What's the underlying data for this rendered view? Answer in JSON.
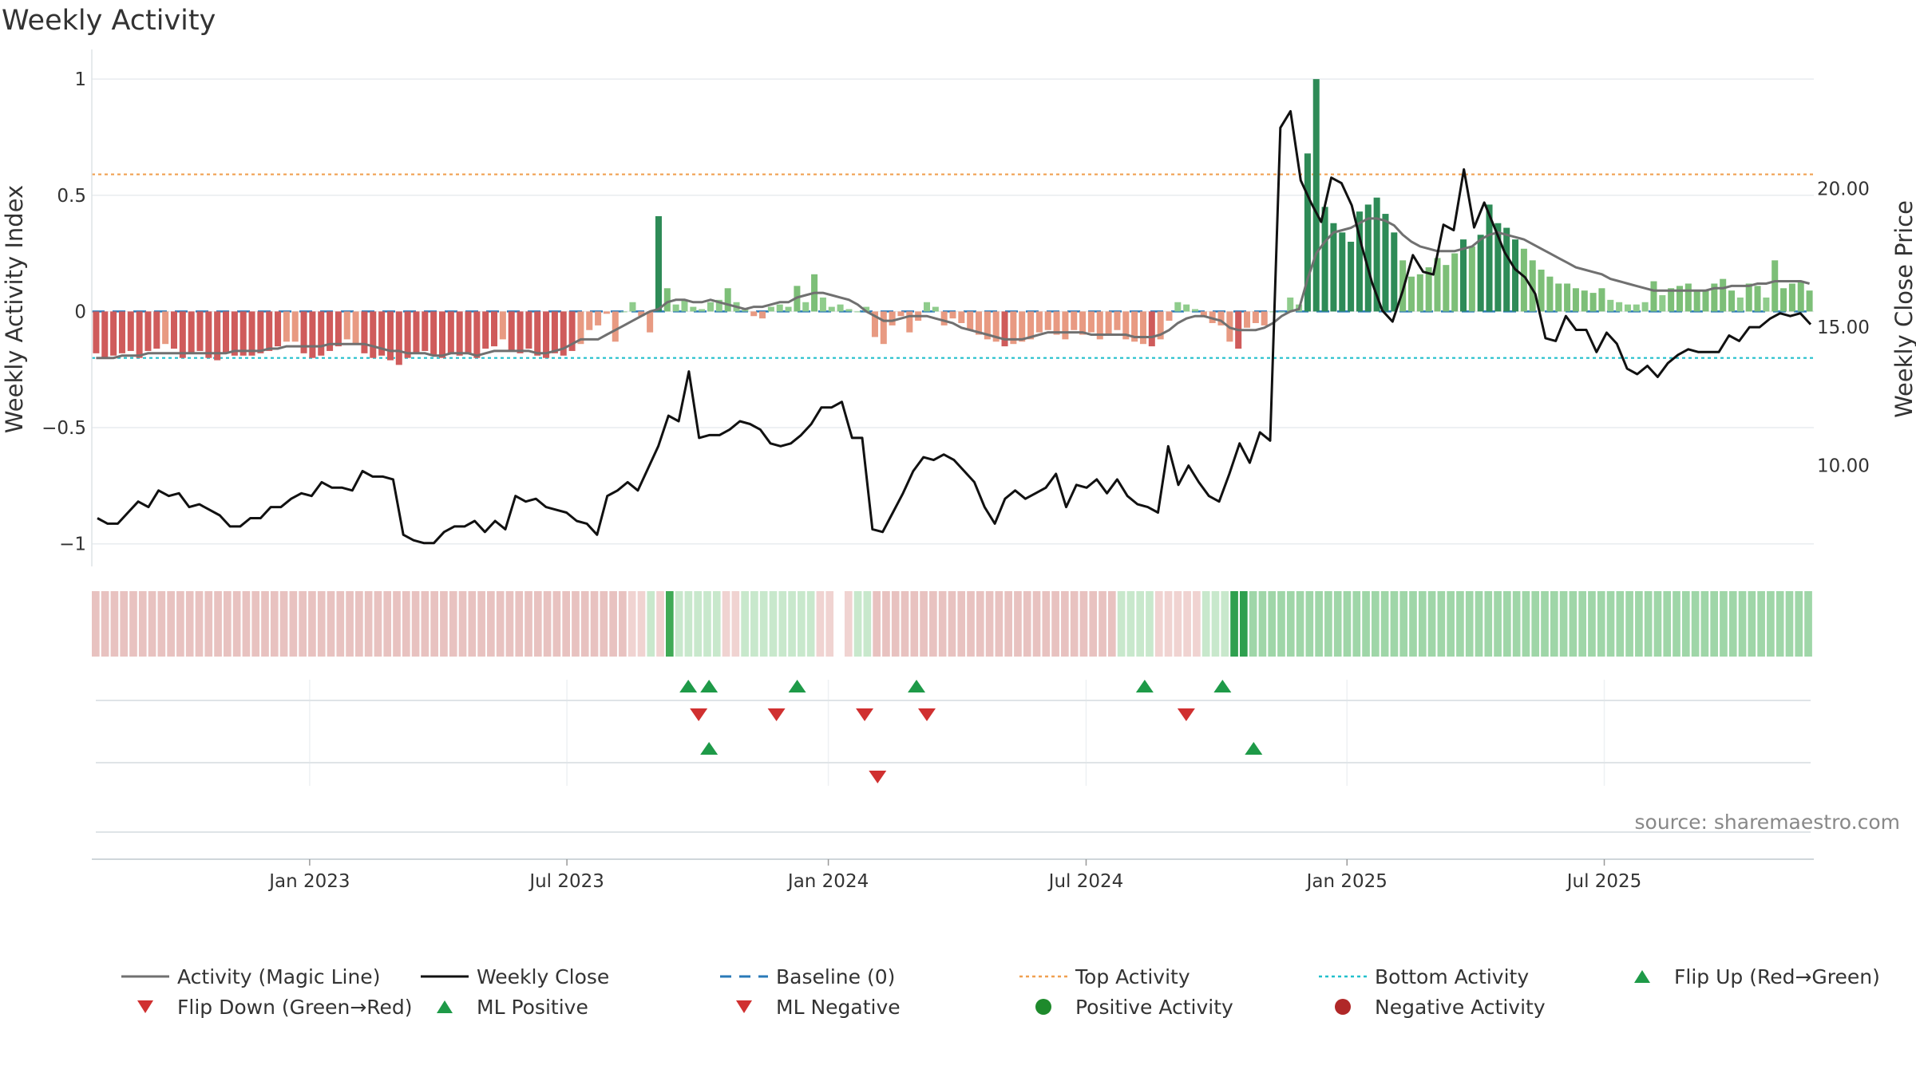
{
  "title": "Weekly Activity",
  "source": "source: sharemaestro.com",
  "colors": {
    "magic_line": "#707070",
    "weekly_close": "#111111",
    "baseline": "#2a7ab8",
    "top_activity": "#f0a050",
    "bottom_activity": "#22c0cc",
    "up_marker": "#1e9a48",
    "down_marker": "#d03030",
    "positive": "#1e8a2c",
    "negative": "#b02828"
  },
  "chart_data": {
    "type": "bar",
    "title": "Weekly Activity",
    "x_range": [
      2022.58,
      2025.9
    ],
    "x_ticks": [
      {
        "label": "Jan 2023",
        "x": 2023.0
      },
      {
        "label": "Jul 2023",
        "x": 2023.496
      },
      {
        "label": "Jan 2024",
        "x": 2024.0
      },
      {
        "label": "Jul 2024",
        "x": 2024.497
      },
      {
        "label": "Jan 2025",
        "x": 2025.0
      },
      {
        "label": "Jul 2025",
        "x": 2025.496
      }
    ],
    "y_left": {
      "label": "Weekly Activity Index",
      "range": [
        -1.08,
        1.1
      ],
      "ticks": [
        {
          "v": 1,
          "label": "1"
        },
        {
          "v": 0.5,
          "label": "0.5"
        },
        {
          "v": 0,
          "label": "0"
        },
        {
          "v": -0.5,
          "label": "−0.5"
        },
        {
          "v": -1,
          "label": "−1"
        }
      ]
    },
    "y_right": {
      "label": "Weekly Close Price",
      "range": [
        6.5,
        24.8
      ],
      "ticks": [
        {
          "v": 20,
          "label": "20.00"
        },
        {
          "v": 15,
          "label": "15.00"
        },
        {
          "v": 10,
          "label": "10.00"
        }
      ]
    },
    "reference_lines": {
      "baseline": 0,
      "top_activity": 0.59,
      "bottom_activity": -0.2
    },
    "activity_bars": [
      -0.18,
      -0.2,
      -0.19,
      -0.18,
      -0.17,
      -0.2,
      -0.17,
      -0.16,
      -0.14,
      -0.16,
      -0.2,
      -0.18,
      -0.17,
      -0.2,
      -0.21,
      -0.18,
      -0.19,
      -0.19,
      -0.19,
      -0.18,
      -0.17,
      -0.15,
      -0.13,
      -0.13,
      -0.18,
      -0.2,
      -0.19,
      -0.17,
      -0.15,
      -0.12,
      -0.14,
      -0.18,
      -0.2,
      -0.19,
      -0.21,
      -0.23,
      -0.2,
      -0.18,
      -0.17,
      -0.19,
      -0.2,
      -0.18,
      -0.19,
      -0.18,
      -0.2,
      -0.16,
      -0.15,
      -0.12,
      -0.17,
      -0.18,
      -0.16,
      -0.19,
      -0.2,
      -0.18,
      -0.19,
      -0.17,
      -0.14,
      -0.08,
      -0.06,
      -0.01,
      -0.13,
      0.0,
      0.04,
      -0.02,
      -0.09,
      0.41,
      0.1,
      0.03,
      0.05,
      0.02,
      0.01,
      0.04,
      0.05,
      0.1,
      0.04,
      0.01,
      -0.02,
      -0.03,
      0.02,
      0.03,
      0.02,
      0.11,
      0.04,
      0.16,
      0.06,
      0.02,
      0.03,
      0.01,
      0.0,
      0.02,
      -0.11,
      -0.14,
      -0.06,
      -0.02,
      -0.09,
      -0.04,
      0.04,
      0.02,
      -0.06,
      -0.03,
      -0.05,
      -0.08,
      -0.1,
      -0.12,
      -0.13,
      -0.15,
      -0.14,
      -0.13,
      -0.12,
      -0.09,
      -0.08,
      -0.1,
      -0.12,
      -0.08,
      -0.1,
      -0.09,
      -0.12,
      -0.1,
      -0.08,
      -0.12,
      -0.13,
      -0.14,
      -0.15,
      -0.12,
      -0.04,
      0.04,
      0.03,
      0.01,
      -0.02,
      -0.05,
      -0.06,
      -0.13,
      -0.16,
      -0.07,
      -0.05,
      -0.06,
      0.0,
      0.0,
      0.06,
      0.03,
      0.68,
      1.0,
      0.45,
      0.38,
      0.34,
      0.3,
      0.43,
      0.46,
      0.49,
      0.42,
      0.34,
      0.22,
      0.15,
      0.16,
      0.19,
      0.23,
      0.2,
      0.25,
      0.31,
      0.28,
      0.33,
      0.46,
      0.38,
      0.36,
      0.31,
      0.27,
      0.22,
      0.18,
      0.15,
      0.12,
      0.12,
      0.1,
      0.09,
      0.08,
      0.1,
      0.05,
      0.04,
      0.03,
      0.03,
      0.04,
      0.13,
      0.07,
      0.1,
      0.11,
      0.12,
      0.09,
      0.09,
      0.12,
      0.14,
      0.09,
      0.06,
      0.12,
      0.11,
      0.06,
      0.22,
      0.1,
      0.12,
      0.13,
      0.09
    ],
    "magic_line": [
      -0.2,
      -0.2,
      -0.2,
      -0.19,
      -0.19,
      -0.19,
      -0.18,
      -0.18,
      -0.18,
      -0.18,
      -0.18,
      -0.18,
      -0.18,
      -0.18,
      -0.18,
      -0.18,
      -0.17,
      -0.17,
      -0.17,
      -0.17,
      -0.16,
      -0.16,
      -0.15,
      -0.15,
      -0.15,
      -0.15,
      -0.15,
      -0.14,
      -0.14,
      -0.14,
      -0.14,
      -0.14,
      -0.15,
      -0.16,
      -0.17,
      -0.17,
      -0.18,
      -0.18,
      -0.18,
      -0.19,
      -0.19,
      -0.18,
      -0.18,
      -0.18,
      -0.19,
      -0.18,
      -0.17,
      -0.17,
      -0.17,
      -0.17,
      -0.17,
      -0.18,
      -0.18,
      -0.17,
      -0.16,
      -0.14,
      -0.12,
      -0.12,
      -0.12,
      -0.1,
      -0.08,
      -0.06,
      -0.04,
      -0.02,
      0.0,
      0.01,
      0.04,
      0.05,
      0.05,
      0.04,
      0.04,
      0.05,
      0.04,
      0.03,
      0.02,
      0.01,
      0.02,
      0.02,
      0.03,
      0.04,
      0.04,
      0.06,
      0.07,
      0.08,
      0.08,
      0.07,
      0.06,
      0.05,
      0.03,
      0.0,
      -0.02,
      -0.04,
      -0.04,
      -0.03,
      -0.02,
      -0.02,
      -0.02,
      -0.03,
      -0.04,
      -0.05,
      -0.07,
      -0.08,
      -0.09,
      -0.1,
      -0.11,
      -0.12,
      -0.12,
      -0.12,
      -0.11,
      -0.1,
      -0.09,
      -0.09,
      -0.09,
      -0.09,
      -0.09,
      -0.1,
      -0.1,
      -0.1,
      -0.1,
      -0.1,
      -0.11,
      -0.11,
      -0.11,
      -0.1,
      -0.08,
      -0.05,
      -0.03,
      -0.02,
      -0.02,
      -0.03,
      -0.04,
      -0.07,
      -0.08,
      -0.08,
      -0.08,
      -0.07,
      -0.05,
      -0.02,
      0.0,
      0.01,
      0.14,
      0.25,
      0.3,
      0.34,
      0.35,
      0.36,
      0.38,
      0.4,
      0.4,
      0.39,
      0.37,
      0.33,
      0.3,
      0.28,
      0.27,
      0.26,
      0.26,
      0.26,
      0.27,
      0.28,
      0.31,
      0.33,
      0.34,
      0.33,
      0.32,
      0.31,
      0.29,
      0.27,
      0.25,
      0.23,
      0.21,
      0.19,
      0.18,
      0.17,
      0.16,
      0.14,
      0.13,
      0.12,
      0.11,
      0.1,
      0.09,
      0.09,
      0.09,
      0.09,
      0.09,
      0.09,
      0.09,
      0.1,
      0.1,
      0.11,
      0.11,
      0.11,
      0.12,
      0.12,
      0.13,
      0.13,
      0.13,
      0.13,
      0.12
    ],
    "weekly_close": [
      8.1,
      7.9,
      7.9,
      8.3,
      8.7,
      8.5,
      9.1,
      8.9,
      9.0,
      8.5,
      8.6,
      8.4,
      8.2,
      7.8,
      7.8,
      8.1,
      8.1,
      8.5,
      8.5,
      8.8,
      9.0,
      8.9,
      9.4,
      9.2,
      9.2,
      9.1,
      9.8,
      9.6,
      9.6,
      9.5,
      7.5,
      7.3,
      7.2,
      7.2,
      7.6,
      7.8,
      7.8,
      8.0,
      7.6,
      8.0,
      7.7,
      8.9,
      8.7,
      8.8,
      8.5,
      8.4,
      8.3,
      8.0,
      7.9,
      7.5,
      8.9,
      9.1,
      9.4,
      9.1,
      9.9,
      10.7,
      11.8,
      11.6,
      13.4,
      11.0,
      11.1,
      11.1,
      11.3,
      11.6,
      11.5,
      11.3,
      10.8,
      10.7,
      10.8,
      11.1,
      11.5,
      12.1,
      12.1,
      12.3,
      11.0,
      11.0,
      7.7,
      7.6,
      8.3,
      9.0,
      9.8,
      10.3,
      10.2,
      10.4,
      10.2,
      9.8,
      9.4,
      8.5,
      7.9,
      8.8,
      9.1,
      8.8,
      9.0,
      9.2,
      9.7,
      8.5,
      9.3,
      9.2,
      9.5,
      9.0,
      9.5,
      8.9,
      8.6,
      8.5,
      8.3,
      10.7,
      9.3,
      10.0,
      9.4,
      8.9,
      8.7,
      9.7,
      10.8,
      10.1,
      11.2,
      10.9,
      22.2,
      22.8,
      20.3,
      19.5,
      18.8,
      20.4,
      20.2,
      19.4,
      17.9,
      16.6,
      15.6,
      15.2,
      16.3,
      17.6,
      17.0,
      16.9,
      18.7,
      18.5,
      20.7,
      18.6,
      19.5,
      18.6,
      17.7,
      17.1,
      16.8,
      16.2,
      14.6,
      14.5,
      15.4,
      14.9,
      14.9,
      14.1,
      14.8,
      14.4,
      13.5,
      13.3,
      13.6,
      13.2,
      13.7,
      14.0,
      14.2,
      14.1,
      14.1,
      14.1,
      14.7,
      14.5,
      15.0,
      15.0,
      15.3,
      15.5,
      15.4,
      15.5,
      15.1
    ]
  },
  "color_strip": [
    -0.21,
    -0.21,
    -0.21,
    -0.21,
    -0.21,
    -0.21,
    -0.21,
    -0.21,
    -0.21,
    -0.21,
    -0.21,
    -0.21,
    -0.21,
    -0.21,
    -0.21,
    -0.21,
    -0.21,
    -0.21,
    -0.21,
    -0.21,
    -0.21,
    -0.21,
    -0.21,
    -0.21,
    -0.21,
    -0.21,
    -0.21,
    -0.21,
    -0.21,
    -0.21,
    -0.21,
    -0.21,
    -0.21,
    -0.21,
    -0.21,
    -0.21,
    -0.21,
    -0.21,
    -0.21,
    -0.21,
    -0.21,
    -0.21,
    -0.21,
    -0.21,
    -0.21,
    -0.21,
    -0.21,
    -0.21,
    -0.21,
    -0.21,
    -0.21,
    -0.21,
    -0.21,
    -0.21,
    -0.21,
    -0.21,
    -0.21,
    -0.12,
    -0.06,
    0.05,
    -0.1,
    0.42,
    0.1,
    0.1,
    0.1,
    0.1,
    0.1,
    -0.1,
    -0.1,
    0.1,
    0.1,
    0.1,
    0.1,
    0.1,
    0.1,
    0.1,
    0.1,
    -0.12,
    -0.12,
    null,
    -0.06,
    0.05,
    0.05,
    -0.21,
    -0.21,
    -0.21,
    -0.21,
    -0.21,
    -0.21,
    -0.21,
    -0.21,
    -0.21,
    -0.21,
    -0.21,
    -0.21,
    -0.21,
    -0.21,
    -0.21,
    -0.21,
    -0.21,
    -0.21,
    -0.21,
    -0.21,
    -0.21,
    -0.21,
    -0.21,
    -0.21,
    -0.21,
    -0.21,
    0.08,
    0.08,
    0.08,
    0.08,
    -0.18,
    -0.18,
    -0.18,
    -0.18,
    -0.18,
    0.05,
    0.05,
    0.05,
    1.0,
    1.0,
    0.3,
    0.3,
    0.3,
    0.3,
    0.3,
    0.3,
    0.3,
    0.3,
    0.3,
    0.3,
    0.3,
    0.3,
    0.3,
    0.3,
    0.3,
    0.3,
    0.3,
    0.3,
    0.3,
    0.3,
    0.3,
    0.3,
    0.3,
    0.3,
    0.3,
    0.3,
    0.3,
    0.3,
    0.3,
    0.3,
    0.3,
    0.3,
    0.3,
    0.3,
    0.3,
    0.3,
    0.3,
    0.3,
    0.3,
    0.3,
    0.3,
    0.3,
    0.3,
    0.3,
    0.3,
    0.3,
    0.3,
    0.3,
    0.3,
    0.3,
    0.3,
    0.3,
    0.3,
    0.3,
    0.3,
    0.3,
    0.3,
    0.3,
    0.3,
    0.3
  ],
  "signal_rows": [
    {
      "name": "Flip",
      "up": [
        2023.73,
        2023.77,
        2023.94,
        2024.17,
        2024.61,
        2024.76
      ],
      "down": [
        2023.75,
        2023.9,
        2024.07,
        2024.19,
        2024.69
      ]
    },
    {
      "name": "ML",
      "up": [
        2023.77,
        2024.82
      ],
      "down": [
        2024.095
      ]
    },
    {
      "name": "Activity",
      "up": [],
      "down": []
    }
  ],
  "legend": [
    {
      "label": "Activity (Magic Line)",
      "kind": "line",
      "color": "#707070"
    },
    {
      "label": "Weekly Close",
      "kind": "line",
      "color": "#111111"
    },
    {
      "label": "Baseline (0)",
      "kind": "dash",
      "color": "#2a7ab8"
    },
    {
      "label": "Top Activity",
      "kind": "dot",
      "color": "#f0a050"
    },
    {
      "label": "Bottom Activity",
      "kind": "dot",
      "color": "#22c0cc"
    },
    {
      "label": "Flip Up (Red→Green)",
      "kind": "tri-up",
      "color": "#1e9a48"
    },
    {
      "label": "Flip Down (Green→Red)",
      "kind": "tri-down",
      "color": "#d03030"
    },
    {
      "label": "ML Positive",
      "kind": "tri-up",
      "color": "#1e9a48"
    },
    {
      "label": "ML Negative",
      "kind": "tri-down",
      "color": "#d03030"
    },
    {
      "label": "Positive Activity",
      "kind": "circle",
      "color": "#1e8a2c"
    },
    {
      "label": "Negative Activity",
      "kind": "circle",
      "color": "#b02828"
    }
  ]
}
